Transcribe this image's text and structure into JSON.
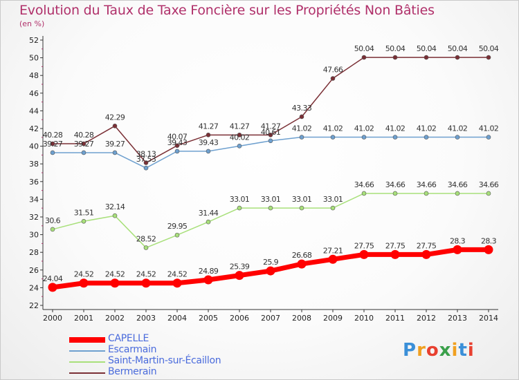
{
  "title": "Evolution du Taux de Taxe Foncière sur les Propriétés Non Bâties",
  "subtitle": "(en %)",
  "logo": "Proxiti",
  "chart_data": {
    "type": "line",
    "title": "Evolution du Taux de Taxe Foncière sur les Propriétés Non Bâties",
    "ylabel": "(en %)",
    "x": [
      2000,
      2001,
      2002,
      2003,
      2004,
      2005,
      2006,
      2007,
      2008,
      2009,
      2010,
      2011,
      2012,
      2013,
      2014
    ],
    "ylim": [
      22,
      52
    ],
    "yticks": [
      22,
      24,
      26,
      28,
      30,
      32,
      34,
      36,
      38,
      40,
      42,
      44,
      46,
      48,
      50,
      52
    ],
    "grid": false,
    "legend_position": "bottom-left",
    "series": [
      {
        "name": "CAPELLE",
        "color": "#ff0000",
        "values": [
          24.04,
          24.52,
          24.52,
          24.52,
          24.52,
          24.89,
          25.39,
          25.9,
          26.68,
          27.21,
          27.75,
          27.75,
          27.75,
          28.3,
          28.3
        ],
        "labels": [
          "24.04",
          "24.52",
          "24.52",
          "24.52",
          "24.52",
          "24.89",
          "25.39",
          "25.9",
          "26.68",
          "27.21",
          "27.75",
          "27.75",
          "27.75",
          "28.3",
          "28.3"
        ]
      },
      {
        "name": "Escarmain",
        "color": "#6ea0cf",
        "values": [
          39.27,
          39.27,
          39.27,
          37.53,
          39.43,
          39.43,
          40.02,
          40.61,
          41.02,
          41.02,
          41.02,
          41.02,
          41.02,
          41.02,
          41.02
        ],
        "labels": [
          "39.27",
          "39.27",
          "39.27",
          "37.53",
          "39.43",
          "39.43",
          "40.02",
          "40.61",
          "41.02",
          "41.02",
          "41.02",
          "41.02",
          "41.02",
          "41.02",
          "41.02"
        ]
      },
      {
        "name": "Saint-Martin-sur-Écaillon",
        "color": "#a8e07a",
        "values": [
          30.6,
          31.51,
          32.14,
          28.52,
          29.95,
          31.44,
          33.01,
          33.01,
          33.01,
          33.01,
          34.66,
          34.66,
          34.66,
          34.66,
          34.66
        ],
        "labels": [
          "30.6",
          "31.51",
          "32.14",
          "28.52",
          "29.95",
          "31.44",
          "33.01",
          "33.01",
          "33.01",
          "33.01",
          "34.66",
          "34.66",
          "34.66",
          "34.66",
          "34.66"
        ]
      },
      {
        "name": "Bermerain",
        "color": "#7a2f35",
        "values": [
          40.28,
          40.28,
          42.29,
          38.13,
          40.07,
          41.27,
          41.27,
          41.27,
          43.33,
          47.66,
          50.04,
          50.04,
          50.04,
          50.04,
          50.04
        ],
        "labels": [
          "40.28",
          "40.28",
          "42.29",
          "38.13",
          "40.07",
          "41.27",
          "41.27",
          "41.27",
          "43.33",
          "47.66",
          "50.04",
          "50.04",
          "50.04",
          "50.04",
          "50.04"
        ]
      }
    ]
  }
}
